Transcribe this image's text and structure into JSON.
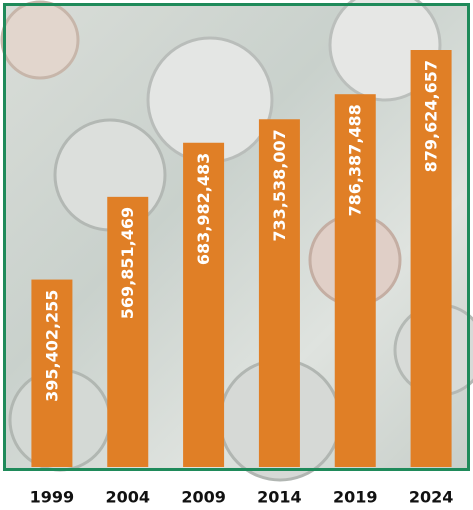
{
  "chart_data": {
    "type": "bar",
    "categories": [
      "1999",
      "2004",
      "2009",
      "2014",
      "2019",
      "2024"
    ],
    "values": [
      395402255,
      569851469,
      683982483,
      733538007,
      786387488,
      879624657
    ],
    "value_labels": [
      "395,402,255",
      "569,851,469",
      "683,982,483",
      "733,538,007",
      "786,387,488",
      "879,624,657"
    ],
    "color": "#e07f26"
  }
}
